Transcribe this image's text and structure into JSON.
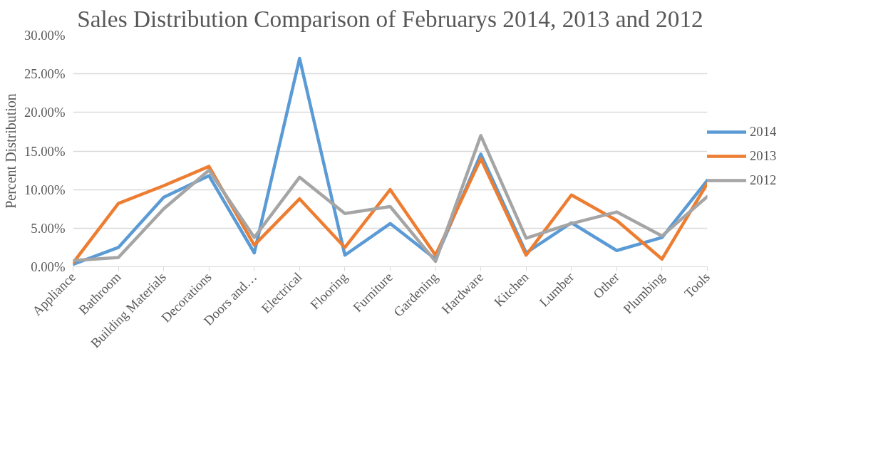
{
  "chart_data": {
    "type": "line",
    "title": "Sales Distribution Comparison of Februarys 2014, 2013 and 2012",
    "ylabel": "Percent Distribution",
    "categories": [
      "Appliance",
      "Bathroom",
      "Building Materials",
      "Decorations",
      "Doors and…",
      "Electrical",
      "Flooring",
      "Furniture",
      "Gardening",
      "Hardware",
      "Kitchen",
      "Lumber",
      "Other",
      "Plumbing",
      "Tools"
    ],
    "series": [
      {
        "name": "2014",
        "color": "#5b9bd5",
        "values": [
          0.3,
          2.5,
          9.0,
          11.8,
          1.8,
          27.0,
          1.5,
          5.6,
          1.0,
          14.6,
          1.8,
          5.7,
          2.1,
          3.8,
          11.2
        ]
      },
      {
        "name": "2013",
        "color": "#ed7d31",
        "values": [
          0.5,
          8.2,
          10.5,
          13.0,
          2.8,
          8.8,
          2.5,
          10.0,
          1.5,
          14.0,
          1.5,
          9.3,
          6.0,
          1.0,
          10.8
        ]
      },
      {
        "name": "2012",
        "color": "#a5a5a5",
        "values": [
          0.8,
          1.2,
          7.5,
          12.5,
          3.8,
          11.6,
          6.9,
          7.8,
          0.7,
          17.0,
          3.7,
          5.6,
          7.1,
          4.0,
          9.1
        ]
      }
    ],
    "ylim": [
      0,
      30
    ],
    "yticks": [
      {
        "value": 0,
        "label": "0.00%"
      },
      {
        "value": 5,
        "label": "5.00%"
      },
      {
        "value": 10,
        "label": "10.00%"
      },
      {
        "value": 15,
        "label": "15.00%"
      },
      {
        "value": 20,
        "label": "20.00%"
      },
      {
        "value": 25,
        "label": "25.00%"
      },
      {
        "value": 30,
        "label": "30.00%"
      }
    ],
    "grid": "y",
    "legend": "right",
    "marker": "none",
    "line_style": "solid"
  }
}
